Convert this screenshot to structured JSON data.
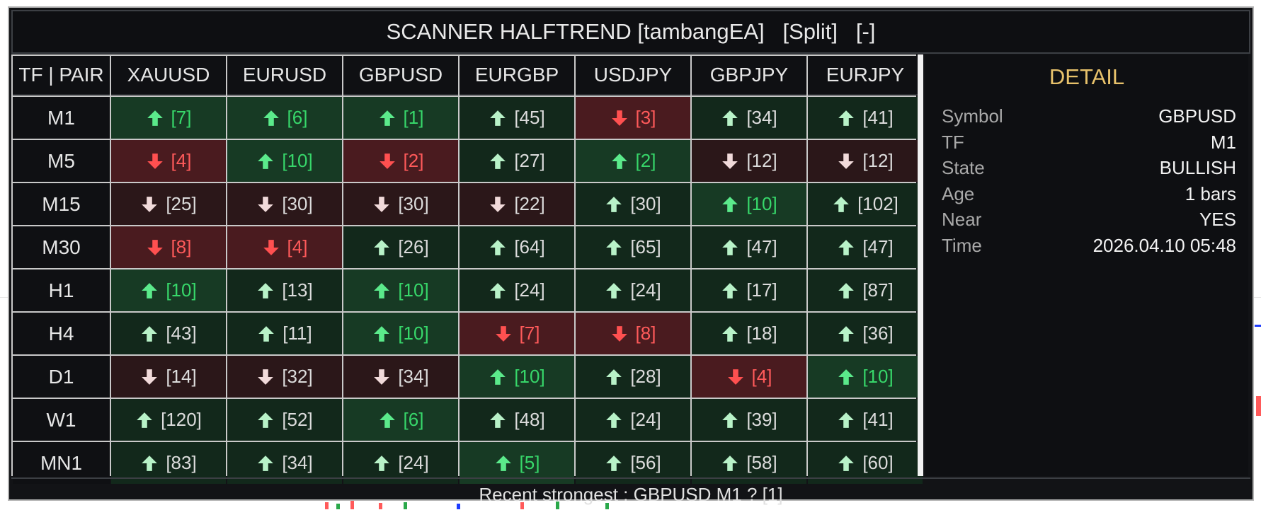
{
  "header": {
    "title": "SCANNER HALFTREND [tambangEA]",
    "split_label": "[Split]",
    "minimize_label": "[-]"
  },
  "grid": {
    "corner_label": "TF | PAIR",
    "pairs": [
      "XAUUSD",
      "EURUSD",
      "GBPUSD",
      "EURGBP",
      "USDJPY",
      "GBPJPY",
      "EURJPY"
    ],
    "timeframes": [
      "M1",
      "M5",
      "M15",
      "M30",
      "H1",
      "H4",
      "D1",
      "W1",
      "MN1"
    ],
    "rows": [
      [
        [
          "up",
          "strong",
          "[7]"
        ],
        [
          "up",
          "strong",
          "[6]"
        ],
        [
          "up",
          "strong",
          "[1]"
        ],
        [
          "up",
          "weak",
          "[45]"
        ],
        [
          "down",
          "strong",
          "[3]"
        ],
        [
          "up",
          "weak",
          "[34]"
        ],
        [
          "up",
          "weak",
          "[41]"
        ]
      ],
      [
        [
          "down",
          "strong",
          "[4]"
        ],
        [
          "up",
          "strong",
          "[10]"
        ],
        [
          "down",
          "strong",
          "[2]"
        ],
        [
          "up",
          "weak",
          "[27]"
        ],
        [
          "up",
          "strong",
          "[2]"
        ],
        [
          "down",
          "weak",
          "[12]"
        ],
        [
          "down",
          "weak",
          "[12]"
        ]
      ],
      [
        [
          "down",
          "weak",
          "[25]"
        ],
        [
          "down",
          "weak",
          "[30]"
        ],
        [
          "down",
          "weak",
          "[30]"
        ],
        [
          "down",
          "weak",
          "[22]"
        ],
        [
          "up",
          "weak",
          "[30]"
        ],
        [
          "up",
          "strong",
          "[10]"
        ],
        [
          "up",
          "weak",
          "[102]"
        ]
      ],
      [
        [
          "down",
          "strong",
          "[8]"
        ],
        [
          "down",
          "strong",
          "[4]"
        ],
        [
          "up",
          "weak",
          "[26]"
        ],
        [
          "up",
          "weak",
          "[64]"
        ],
        [
          "up",
          "weak",
          "[65]"
        ],
        [
          "up",
          "weak",
          "[47]"
        ],
        [
          "up",
          "weak",
          "[47]"
        ]
      ],
      [
        [
          "up",
          "strong",
          "[10]"
        ],
        [
          "up",
          "weak",
          "[13]"
        ],
        [
          "up",
          "strong",
          "[10]"
        ],
        [
          "up",
          "weak",
          "[24]"
        ],
        [
          "up",
          "weak",
          "[24]"
        ],
        [
          "up",
          "weak",
          "[17]"
        ],
        [
          "up",
          "weak",
          "[87]"
        ]
      ],
      [
        [
          "up",
          "weak",
          "[43]"
        ],
        [
          "up",
          "weak",
          "[11]"
        ],
        [
          "up",
          "strong",
          "[10]"
        ],
        [
          "down",
          "strong",
          "[7]"
        ],
        [
          "down",
          "strong",
          "[8]"
        ],
        [
          "up",
          "weak",
          "[18]"
        ],
        [
          "up",
          "weak",
          "[36]"
        ]
      ],
      [
        [
          "down",
          "weak",
          "[14]"
        ],
        [
          "down",
          "weak",
          "[32]"
        ],
        [
          "down",
          "weak",
          "[34]"
        ],
        [
          "up",
          "strong",
          "[10]"
        ],
        [
          "up",
          "weak",
          "[28]"
        ],
        [
          "down",
          "strong",
          "[4]"
        ],
        [
          "up",
          "strong",
          "[10]"
        ]
      ],
      [
        [
          "up",
          "weak",
          "[120]"
        ],
        [
          "up",
          "weak",
          "[52]"
        ],
        [
          "up",
          "strong",
          "[6]"
        ],
        [
          "up",
          "weak",
          "[48]"
        ],
        [
          "up",
          "weak",
          "[24]"
        ],
        [
          "up",
          "weak",
          "[39]"
        ],
        [
          "up",
          "weak",
          "[41]"
        ]
      ],
      [
        [
          "up",
          "weak",
          "[83]"
        ],
        [
          "up",
          "weak",
          "[34]"
        ],
        [
          "up",
          "weak",
          "[24]"
        ],
        [
          "up",
          "strong",
          "[5]"
        ],
        [
          "up",
          "weak",
          "[56]"
        ],
        [
          "up",
          "weak",
          "[58]"
        ],
        [
          "up",
          "weak",
          "[60]"
        ]
      ]
    ]
  },
  "detail": {
    "title": "DETAIL",
    "rows": [
      {
        "label": "Symbol",
        "value": "GBPUSD"
      },
      {
        "label": "TF",
        "value": "M1"
      },
      {
        "label": "State",
        "value": "BULLISH"
      },
      {
        "label": "Age",
        "value": "1 bars"
      },
      {
        "label": "Near",
        "value": "YES"
      },
      {
        "label": "Time",
        "value": "2026.04.10 05:48"
      }
    ]
  },
  "footer": {
    "text": "Recent strongest : GBPUSD M1 ? [1]"
  },
  "colors": {
    "up_strong": "#37d76a",
    "down_strong": "#ff5a5a",
    "detail_title": "#e8c26b",
    "panel_bg": "#121316"
  },
  "icons": {
    "up": "arrow-up-icon",
    "down": "arrow-down-icon"
  }
}
